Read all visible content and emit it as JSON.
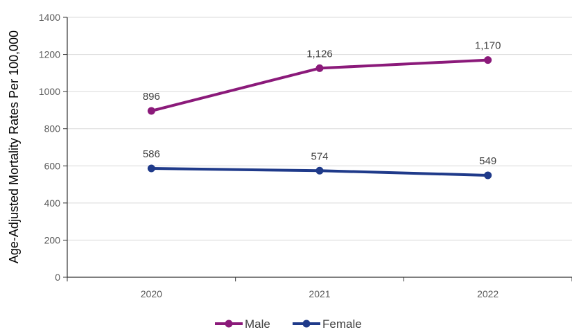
{
  "chart_data": {
    "type": "line",
    "title": "",
    "xlabel": "",
    "ylabel": "Age-Adjusted Mortality Rates Per 100,000",
    "categories": [
      "2020",
      "2021",
      "2022"
    ],
    "ylim": [
      0,
      1400
    ],
    "yticks": [
      0,
      200,
      400,
      600,
      800,
      1000,
      1200,
      1400
    ],
    "ytick_labels": [
      "0",
      "200",
      "400",
      "600",
      "800",
      "1000",
      "1200",
      "1400"
    ],
    "grid": true,
    "legend_position": "bottom",
    "series": [
      {
        "name": "Male",
        "color": "#8B1A7A",
        "values": [
          896,
          1126,
          1170
        ],
        "labels": [
          "896",
          "1,126",
          "1,170"
        ]
      },
      {
        "name": "Female",
        "color": "#1F3A8A",
        "values": [
          586,
          574,
          549
        ],
        "labels": [
          "586",
          "574",
          "549"
        ]
      }
    ]
  }
}
